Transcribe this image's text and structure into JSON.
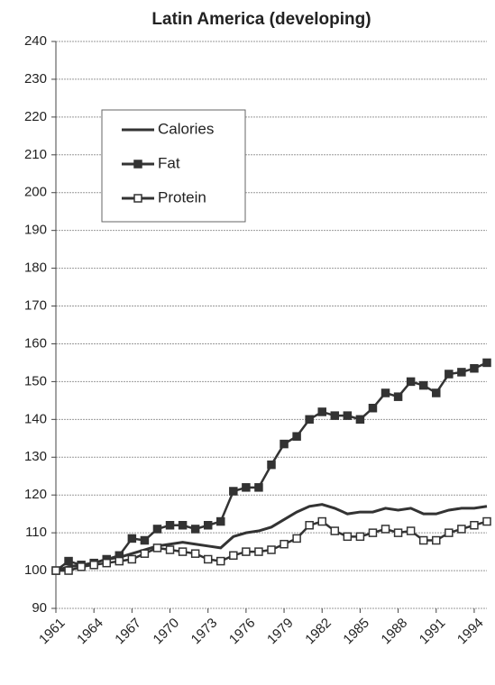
{
  "chart_data": {
    "type": "line",
    "title": "Latin America (developing)",
    "x": [
      1961,
      1962,
      1963,
      1964,
      1965,
      1966,
      1967,
      1968,
      1969,
      1970,
      1971,
      1972,
      1973,
      1974,
      1975,
      1976,
      1977,
      1978,
      1979,
      1980,
      1981,
      1982,
      1983,
      1984,
      1985,
      1986,
      1987,
      1988,
      1989,
      1990,
      1991,
      1992,
      1993,
      1994,
      1995
    ],
    "series": [
      {
        "name": "Calories",
        "color": "#333333",
        "marker": "none",
        "values": [
          100,
          101,
          101.5,
          102,
          103,
          103.5,
          104.5,
          105.5,
          106.5,
          107,
          107.5,
          107,
          106.5,
          106,
          109,
          110,
          110.5,
          111.5,
          113.5,
          115.5,
          117,
          117.5,
          116.5,
          115,
          115.5,
          115.5,
          116.5,
          116,
          116.5,
          115,
          115,
          116,
          116.5,
          116.5,
          117
        ]
      },
      {
        "name": "Fat",
        "color": "#333333",
        "marker": "filled-square",
        "values": [
          100,
          102.5,
          101.5,
          102,
          103,
          104,
          108.5,
          108,
          111,
          112,
          112,
          111,
          112,
          113,
          121,
          122,
          122,
          128,
          133.5,
          135.5,
          140,
          142,
          141,
          141,
          140,
          143,
          147,
          146,
          150,
          149,
          147,
          152,
          152.5,
          153.5,
          155
        ]
      },
      {
        "name": "Protein",
        "color": "#333333",
        "marker": "open-square",
        "values": [
          100,
          100,
          101,
          101.5,
          102,
          102.5,
          103,
          104.5,
          106,
          105.5,
          105,
          104.5,
          103,
          102.5,
          104,
          105,
          105,
          105.5,
          107,
          108.5,
          112,
          113,
          110.5,
          109,
          109,
          110,
          111,
          110,
          110.5,
          108,
          108,
          110,
          111,
          112,
          113
        ]
      }
    ],
    "xlim": [
      1961,
      1995
    ],
    "xticks": [
      1961,
      1964,
      1967,
      1970,
      1973,
      1976,
      1979,
      1982,
      1985,
      1988,
      1991,
      1994
    ],
    "ylim": [
      90,
      240
    ],
    "yticks": [
      90,
      100,
      110,
      120,
      130,
      140,
      150,
      160,
      170,
      180,
      190,
      200,
      210,
      220,
      230,
      240
    ],
    "grid": true,
    "legend": "upper left"
  }
}
